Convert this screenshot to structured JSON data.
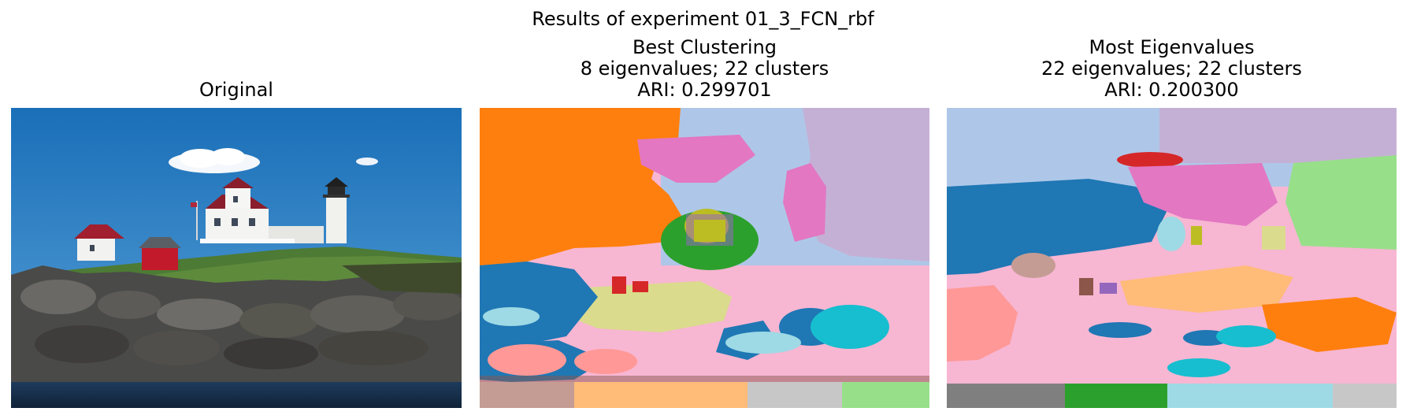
{
  "figure": {
    "suptitle": "Results of experiment 01_3_FCN_rbf"
  },
  "panels": [
    {
      "title_lines": [
        "Original"
      ],
      "image": "photo of a lighthouse with white houses on a rocky grassy coast under blue sky"
    },
    {
      "title_lines": [
        "Best Clustering",
        "8 eigenvalues; 22 clusters",
        "ARI: 0.299701"
      ],
      "image": "segmentation map with 22 colored clusters"
    },
    {
      "title_lines": [
        "Most Eigenvalues",
        "22 eigenvalues; 22 clusters",
        "ARI: 0.200300"
      ],
      "image": "segmentation map with 22 colored clusters"
    }
  ],
  "colors": {
    "sky": "#1f77b4",
    "orange": "#ff7f0e",
    "green": "#2ca02c",
    "red": "#d62728",
    "purple": "#9467bd",
    "brown": "#8c564b",
    "pink": "#e377c2",
    "gray": "#7f7f7f",
    "olive": "#bcbd22",
    "cyan": "#17becf",
    "light_blue": "#aec7e8",
    "light_orange": "#ffbb78",
    "light_green": "#98df8a",
    "light_red": "#ff9896",
    "light_purple": "#c5b0d5",
    "light_brown": "#c49c94",
    "light_pink": "#f7b6d2",
    "light_gray": "#c7c7c7",
    "light_olive": "#dbdb8d",
    "light_cyan": "#9edae5"
  }
}
